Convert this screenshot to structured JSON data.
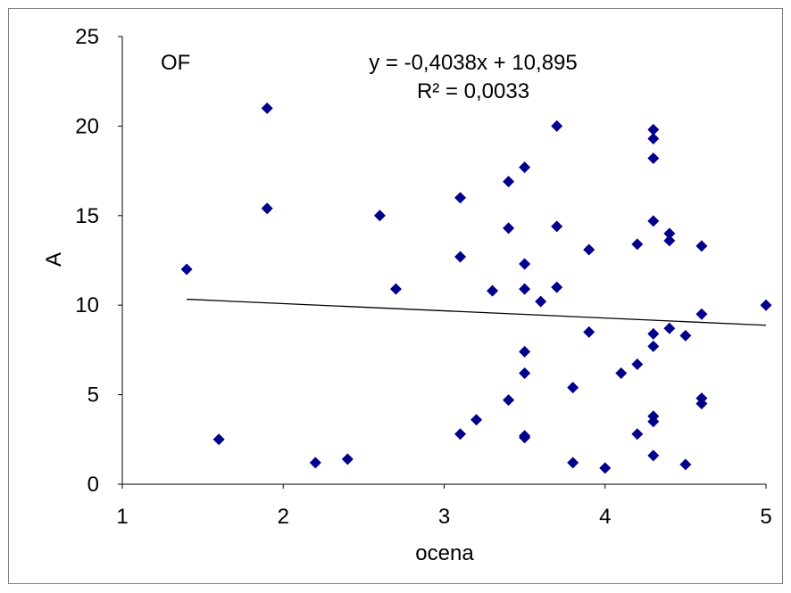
{
  "chart_data": {
    "type": "scatter",
    "title": "",
    "panel_label": "OF",
    "xlabel": "ocena",
    "ylabel": "A",
    "xlim": [
      1,
      5
    ],
    "ylim": [
      0,
      25
    ],
    "x_ticks": [
      1,
      2,
      3,
      4,
      5
    ],
    "y_ticks": [
      0,
      5,
      10,
      15,
      20,
      25
    ],
    "grid": false,
    "legend": "none",
    "marker": "diamond",
    "colors": {
      "points": "#00008B",
      "trendline": "#000000",
      "frame": "#808080"
    },
    "trendline": {
      "type": "linear",
      "slope": -0.4038,
      "intercept": 10.895,
      "x_range": [
        1.4,
        5
      ],
      "equation_label": "y = -0,4038x + 10,895",
      "r2_label": "R² = 0,0033"
    },
    "series": [
      {
        "points": [
          [
            1.4,
            12.0
          ],
          [
            1.6,
            2.5
          ],
          [
            1.9,
            21.0
          ],
          [
            1.9,
            15.4
          ],
          [
            2.2,
            1.2
          ],
          [
            2.4,
            1.4
          ],
          [
            2.6,
            15.0
          ],
          [
            2.7,
            10.9
          ],
          [
            3.1,
            16.0
          ],
          [
            3.1,
            12.7
          ],
          [
            3.1,
            2.8
          ],
          [
            3.2,
            3.6
          ],
          [
            3.3,
            10.8
          ],
          [
            3.4,
            16.9
          ],
          [
            3.4,
            14.3
          ],
          [
            3.4,
            4.7
          ],
          [
            3.5,
            17.7
          ],
          [
            3.5,
            12.3
          ],
          [
            3.5,
            10.9
          ],
          [
            3.5,
            7.4
          ],
          [
            3.5,
            6.2
          ],
          [
            3.5,
            2.7
          ],
          [
            3.5,
            2.6
          ],
          [
            3.6,
            10.2
          ],
          [
            3.7,
            20.0
          ],
          [
            3.7,
            14.4
          ],
          [
            3.7,
            11.0
          ],
          [
            3.8,
            5.4
          ],
          [
            3.8,
            1.2
          ],
          [
            3.9,
            13.1
          ],
          [
            3.9,
            8.5
          ],
          [
            4.0,
            0.9
          ],
          [
            4.1,
            6.2
          ],
          [
            4.2,
            13.4
          ],
          [
            4.2,
            6.7
          ],
          [
            4.2,
            2.8
          ],
          [
            4.3,
            19.8
          ],
          [
            4.3,
            19.3
          ],
          [
            4.3,
            18.2
          ],
          [
            4.3,
            14.7
          ],
          [
            4.3,
            8.4
          ],
          [
            4.3,
            7.7
          ],
          [
            4.3,
            3.8
          ],
          [
            4.3,
            3.5
          ],
          [
            4.3,
            1.6
          ],
          [
            4.4,
            14.0
          ],
          [
            4.4,
            13.6
          ],
          [
            4.4,
            8.7
          ],
          [
            4.5,
            8.3
          ],
          [
            4.5,
            1.1
          ],
          [
            4.6,
            13.3
          ],
          [
            4.6,
            9.5
          ],
          [
            4.6,
            4.8
          ],
          [
            4.6,
            4.5
          ],
          [
            5.0,
            10.0
          ]
        ]
      }
    ]
  }
}
